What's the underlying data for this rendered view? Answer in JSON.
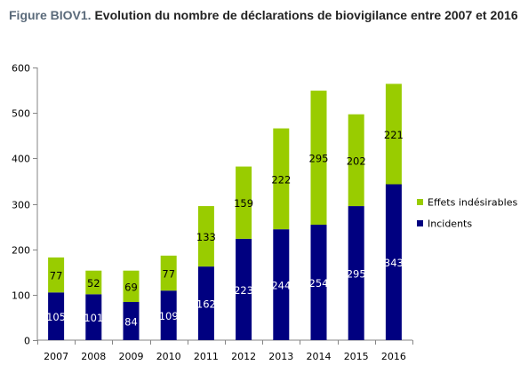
{
  "title": {
    "prefix": "Figure BIOV1.",
    "main": "Evolution du nombre de déclarations de biovigilance entre 2007 et 2016"
  },
  "colors": {
    "incidents": "#000080",
    "effets": "#99cc00",
    "axis": "#868686"
  },
  "chart_data": {
    "type": "bar",
    "stacked": true,
    "categories": [
      "2007",
      "2008",
      "2009",
      "2010",
      "2011",
      "2012",
      "2013",
      "2014",
      "2015",
      "2016"
    ],
    "series": [
      {
        "name": "Incidents",
        "values": [
          105,
          101,
          84,
          109,
          162,
          223,
          244,
          254,
          295,
          343
        ]
      },
      {
        "name": "Effets indésirables",
        "values": [
          77,
          52,
          69,
          77,
          133,
          159,
          222,
          295,
          202,
          221
        ]
      }
    ],
    "ylim": [
      0,
      600
    ],
    "yticks": [
      0,
      100,
      200,
      300,
      400,
      500,
      600
    ],
    "grid": false,
    "legend_position": "right",
    "legend_order": [
      "Effets indésirables",
      "Incidents"
    ],
    "xlabel": "",
    "ylabel": ""
  }
}
